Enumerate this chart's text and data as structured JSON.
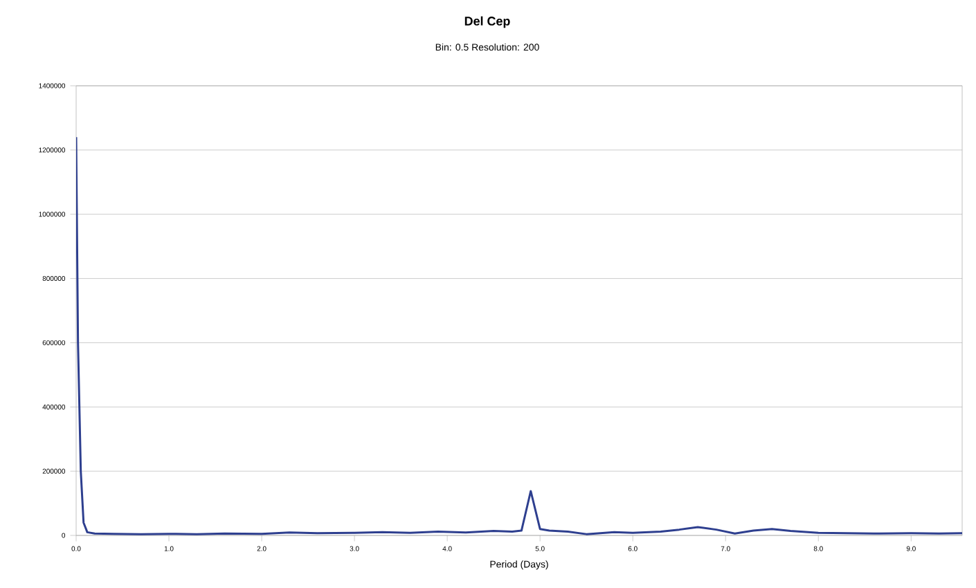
{
  "chart_data": {
    "type": "line",
    "title": "Del Cep",
    "subtitle": "Bin: 0.5 Resolution: 200",
    "xlabel": "Period (Days)",
    "x": [
      0.0,
      0.02,
      0.05,
      0.08,
      0.12,
      0.2,
      0.4,
      0.7,
      1.0,
      1.3,
      1.6,
      2.0,
      2.3,
      2.6,
      3.0,
      3.3,
      3.6,
      3.9,
      4.2,
      4.5,
      4.7,
      4.8,
      4.9,
      5.0,
      5.1,
      5.3,
      5.5,
      5.8,
      6.0,
      6.3,
      6.5,
      6.7,
      6.9,
      7.1,
      7.3,
      7.5,
      7.7,
      8.0,
      8.3,
      8.6,
      9.0,
      9.3,
      9.55
    ],
    "series": [
      {
        "color": "#2e3f8f",
        "values": [
          1240000,
          600000,
          200000,
          40000,
          10000,
          6000,
          5000,
          4000,
          5000,
          4000,
          6000,
          5000,
          9000,
          7000,
          8000,
          10000,
          8000,
          12000,
          9000,
          14000,
          12000,
          15000,
          138000,
          20000,
          15000,
          12000,
          4000,
          10000,
          8000,
          12000,
          18000,
          26000,
          18000,
          6000,
          15000,
          20000,
          14000,
          8000,
          7000,
          6000,
          7000,
          6000,
          7000
        ]
      }
    ],
    "xlim": [
      0,
      9.55
    ],
    "xticks": [
      {
        "value": 0,
        "label": "0.0"
      },
      {
        "value": 1,
        "label": "1.0"
      },
      {
        "value": 2,
        "label": "2.0"
      },
      {
        "value": 3,
        "label": "3.0"
      },
      {
        "value": 4,
        "label": "4.0"
      },
      {
        "value": 5,
        "label": "5.0"
      },
      {
        "value": 6,
        "label": "6.0"
      },
      {
        "value": 7,
        "label": "7.0"
      },
      {
        "value": 8,
        "label": "8.0"
      },
      {
        "value": 9,
        "label": "9.0"
      }
    ],
    "ylim": [
      0,
      1400000
    ],
    "yticks": [
      0,
      200000,
      400000,
      600000,
      800000,
      1000000,
      1200000,
      1400000
    ],
    "grid": "y",
    "marker": "none",
    "line_style": "solid"
  }
}
